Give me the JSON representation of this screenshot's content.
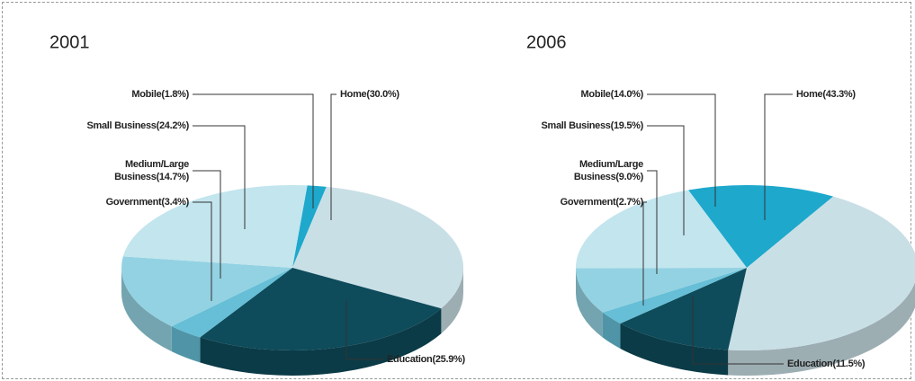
{
  "chart_data": [
    {
      "type": "pie",
      "title": "2001",
      "values": [
        1.8,
        30.0,
        25.9,
        3.4,
        14.7,
        24.2
      ],
      "value_labels": [
        "Mobile(1.8%)",
        "Home(30.0%)",
        "Education(25.9%)",
        "Government(3.4%)",
        "Medium/Large\nBusiness(14.7%)",
        "Small Business(24.2%)"
      ],
      "colors": [
        "#1ea8cc",
        "#c9dfe6",
        "#0e4b5b",
        "#66bfd6",
        "#93d2e2",
        "#c2e5ee"
      ]
    },
    {
      "type": "pie",
      "title": "2006",
      "values": [
        14.0,
        43.3,
        11.5,
        2.7,
        9.0,
        19.5
      ],
      "value_labels": [
        "Mobile(14.0%)",
        "Home(43.3%)",
        "Education(11.5%)",
        "Government(2.7%)",
        "Medium/Large\nBusiness(9.0%)",
        "Small Business(19.5%)"
      ],
      "colors": [
        "#1ea8cc",
        "#c9dfe6",
        "#0e4b5b",
        "#66bfd6",
        "#93d2e2",
        "#c2e5ee"
      ]
    }
  ]
}
